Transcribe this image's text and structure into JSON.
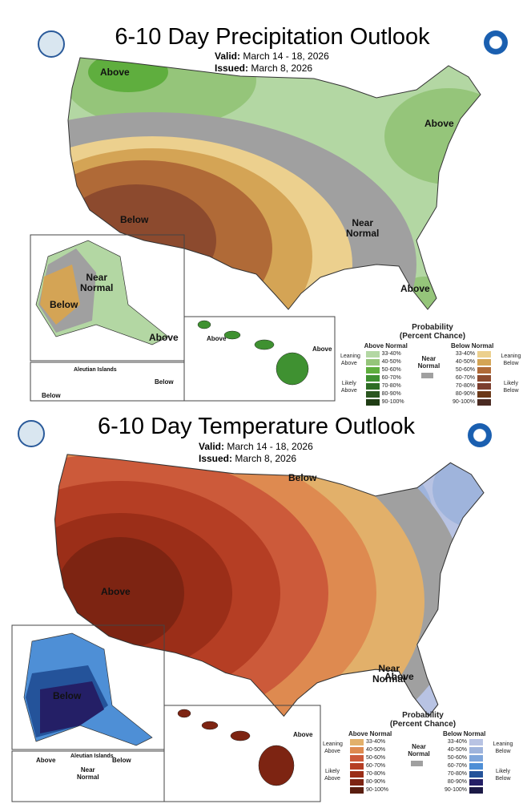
{
  "precip": {
    "title": "6-10 Day Precipitation Outlook",
    "valid_label": "Valid:",
    "valid": "March 14 - 18, 2026",
    "issued_label": "Issued:",
    "issued": "March 8, 2026",
    "labels": {
      "nw_above": "Above",
      "ne_above": "Above",
      "sw_below": "Below",
      "near": "Near",
      "normal": "Normal",
      "fl_above": "Above",
      "ak_near": "Near",
      "ak_normal": "Normal",
      "ak_below": "Below",
      "ak_above": "Above",
      "hi_above_w": "Above",
      "hi_above_e": "Above",
      "aleutian": "Aleutian Islands",
      "al_below_e": "Below",
      "al_below_w": "Below"
    },
    "legend": {
      "title1": "Probability",
      "title2": "(Percent Chance)",
      "above_header": "Above Normal",
      "below_header": "Below Normal",
      "near1": "Near",
      "near2": "Normal",
      "leaning_above": [
        "Leaning",
        "Above"
      ],
      "likely_above": [
        "Likely",
        "Above"
      ],
      "leaning_below": [
        "Leaning",
        "Below"
      ],
      "likely_below": [
        "Likely",
        "Below"
      ],
      "ranges": [
        "33-40%",
        "40-50%",
        "50-60%",
        "60-70%",
        "70-80%",
        "80-90%",
        "90-100%"
      ],
      "above_colors": [
        "#b3d7a3",
        "#95c57a",
        "#5fae3e",
        "#3f9131",
        "#2d6d24",
        "#2a5620",
        "#1f3d14"
      ],
      "below_colors": [
        "#ecd08e",
        "#d4a455",
        "#b06a37",
        "#8c4a2e",
        "#7c3e2e",
        "#6b3818",
        "#4a2a22"
      ],
      "near_color": "#a0a0a0"
    }
  },
  "temp": {
    "title": "6-10 Day Temperature Outlook",
    "valid_label": "Valid:",
    "valid": "March 14 - 18, 2026",
    "issued_label": "Issued:",
    "issued": "March 8, 2026",
    "labels": {
      "gl_below": "Below",
      "sw_above": "Above",
      "near": "Near",
      "normal": "Normal",
      "fl_above": "Above",
      "ak_below": "Below",
      "hi_above": "Above",
      "al_above": "Above",
      "aleutian": "Aleutian Islands",
      "al_below": "Below",
      "al_near": "Near",
      "al_normal": "Normal"
    },
    "legend": {
      "title1": "Probability",
      "title2": "(Percent Chance)",
      "above_header": "Above Normal",
      "below_header": "Below Normal",
      "near1": "Near",
      "near2": "Normal",
      "leaning_above": [
        "Leaning",
        "Above"
      ],
      "likely_above": [
        "Likely",
        "Above"
      ],
      "leaning_below": [
        "Leaning",
        "Below"
      ],
      "likely_below": [
        "Likely",
        "Below"
      ],
      "ranges": [
        "33-40%",
        "40-50%",
        "50-60%",
        "60-70%",
        "70-80%",
        "80-90%",
        "90-100%"
      ],
      "above_colors": [
        "#e2b06a",
        "#de8a50",
        "#cc5a3a",
        "#b53e24",
        "#9b2e18",
        "#7d2412",
        "#5a1e10"
      ],
      "below_colors": [
        "#b8c3e3",
        "#9fb4dc",
        "#7fa6db",
        "#4e8fd6",
        "#24539a",
        "#241f66",
        "#1c1a46"
      ],
      "near_color": "#a0a0a0"
    }
  }
}
